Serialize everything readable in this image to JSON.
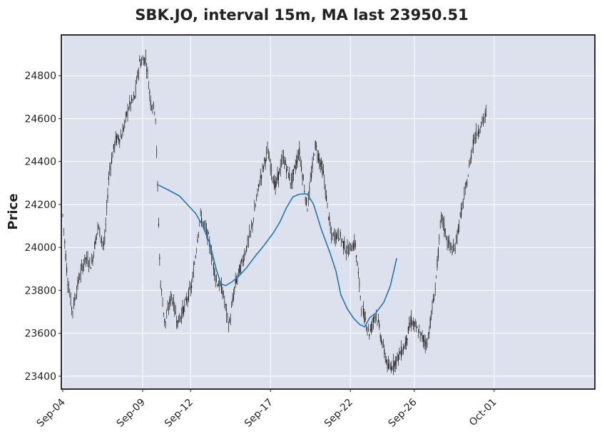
{
  "chart_data": {
    "type": "candlestick",
    "title": "SBK.JO, interval 15m, MA last 23950.51",
    "xlabel": "",
    "ylabel": "Price",
    "ylim": [
      23340,
      24990
    ],
    "y_ticks": [
      23400,
      23600,
      23800,
      24000,
      24200,
      24400,
      24600,
      24800
    ],
    "x_ticks": [
      {
        "label": "Sep-04",
        "day": 0
      },
      {
        "label": "Sep-09",
        "day": 5
      },
      {
        "label": "Sep-12",
        "day": 8
      },
      {
        "label": "Sep-17",
        "day": 13
      },
      {
        "label": "Sep-22",
        "day": 18
      },
      {
        "label": "Sep-26",
        "day": 22
      },
      {
        "label": "Oct-01",
        "day": 27
      }
    ],
    "grid": true,
    "background": "#dce1ed",
    "colors": {
      "candles": "#1a1a1a",
      "ma_line": "#1f77b4"
    },
    "price_path": [
      {
        "day": 0.0,
        "price": 24150
      },
      {
        "day": 0.3,
        "price": 23850
      },
      {
        "day": 0.6,
        "price": 23700
      },
      {
        "day": 1.0,
        "price": 23850
      },
      {
        "day": 1.4,
        "price": 23950
      },
      {
        "day": 1.8,
        "price": 23920
      },
      {
        "day": 2.2,
        "price": 24100
      },
      {
        "day": 2.6,
        "price": 24000
      },
      {
        "day": 2.9,
        "price": 24350
      },
      {
        "day": 3.3,
        "price": 24500
      },
      {
        "day": 3.7,
        "price": 24520
      },
      {
        "day": 4.1,
        "price": 24650
      },
      {
        "day": 4.5,
        "price": 24700
      },
      {
        "day": 4.8,
        "price": 24860
      },
      {
        "day": 5.2,
        "price": 24880
      },
      {
        "day": 5.5,
        "price": 24680
      },
      {
        "day": 5.8,
        "price": 24640
      },
      {
        "day": 6.1,
        "price": 23850
      },
      {
        "day": 6.4,
        "price": 23640
      },
      {
        "day": 6.8,
        "price": 23780
      },
      {
        "day": 7.2,
        "price": 23650
      },
      {
        "day": 7.6,
        "price": 23720
      },
      {
        "day": 8.1,
        "price": 23830
      },
      {
        "day": 8.6,
        "price": 24150
      },
      {
        "day": 9.1,
        "price": 24050
      },
      {
        "day": 9.6,
        "price": 23850
      },
      {
        "day": 10.0,
        "price": 23800
      },
      {
        "day": 10.4,
        "price": 23630
      },
      {
        "day": 10.8,
        "price": 23830
      },
      {
        "day": 11.3,
        "price": 23950
      },
      {
        "day": 11.8,
        "price": 24080
      },
      {
        "day": 12.3,
        "price": 24300
      },
      {
        "day": 12.8,
        "price": 24450
      },
      {
        "day": 13.3,
        "price": 24280
      },
      {
        "day": 13.8,
        "price": 24420
      },
      {
        "day": 14.3,
        "price": 24300
      },
      {
        "day": 14.8,
        "price": 24450
      },
      {
        "day": 15.3,
        "price": 24180
      },
      {
        "day": 15.8,
        "price": 24480
      },
      {
        "day": 16.3,
        "price": 24350
      },
      {
        "day": 16.8,
        "price": 24050
      },
      {
        "day": 17.3,
        "price": 24060
      },
      {
        "day": 17.8,
        "price": 23980
      },
      {
        "day": 18.3,
        "price": 24020
      },
      {
        "day": 18.7,
        "price": 23720
      },
      {
        "day": 19.2,
        "price": 23600
      },
      {
        "day": 19.6,
        "price": 23700
      },
      {
        "day": 20.0,
        "price": 23550
      },
      {
        "day": 20.4,
        "price": 23430
      },
      {
        "day": 20.9,
        "price": 23480
      },
      {
        "day": 21.4,
        "price": 23540
      },
      {
        "day": 21.8,
        "price": 23660
      },
      {
        "day": 22.3,
        "price": 23600
      },
      {
        "day": 22.8,
        "price": 23550
      },
      {
        "day": 23.3,
        "price": 23800
      },
      {
        "day": 23.7,
        "price": 24150
      },
      {
        "day": 24.1,
        "price": 24020
      },
      {
        "day": 24.5,
        "price": 23980
      },
      {
        "day": 24.9,
        "price": 24150
      },
      {
        "day": 25.3,
        "price": 24300
      },
      {
        "day": 25.7,
        "price": 24500
      },
      {
        "day": 26.1,
        "price": 24560
      },
      {
        "day": 26.5,
        "price": 24620
      }
    ],
    "moving_average": [
      {
        "day": 6.0,
        "value": 24290
      },
      {
        "day": 6.6,
        "value": 24268
      },
      {
        "day": 7.3,
        "value": 24240
      },
      {
        "day": 7.8,
        "value": 24200
      },
      {
        "day": 8.3,
        "value": 24160
      },
      {
        "day": 8.7,
        "value": 24110
      },
      {
        "day": 9.2,
        "value": 24020
      },
      {
        "day": 9.6,
        "value": 23900
      },
      {
        "day": 9.9,
        "value": 23830
      },
      {
        "day": 10.2,
        "value": 23822
      },
      {
        "day": 10.6,
        "value": 23840
      },
      {
        "day": 11.0,
        "value": 23865
      },
      {
        "day": 11.5,
        "value": 23905
      },
      {
        "day": 12.0,
        "value": 23955
      },
      {
        "day": 12.6,
        "value": 24010
      },
      {
        "day": 13.2,
        "value": 24070
      },
      {
        "day": 13.6,
        "value": 24120
      },
      {
        "day": 14.0,
        "value": 24185
      },
      {
        "day": 14.4,
        "value": 24235
      },
      {
        "day": 14.8,
        "value": 24248
      },
      {
        "day": 15.3,
        "value": 24250
      },
      {
        "day": 15.7,
        "value": 24200
      },
      {
        "day": 16.2,
        "value": 24080
      },
      {
        "day": 16.7,
        "value": 23980
      },
      {
        "day": 17.1,
        "value": 23890
      },
      {
        "day": 17.4,
        "value": 23780
      },
      {
        "day": 17.8,
        "value": 23715
      },
      {
        "day": 18.2,
        "value": 23670
      },
      {
        "day": 18.6,
        "value": 23640
      },
      {
        "day": 18.9,
        "value": 23630
      },
      {
        "day": 19.2,
        "value": 23672
      },
      {
        "day": 19.6,
        "value": 23695
      },
      {
        "day": 20.1,
        "value": 23745
      },
      {
        "day": 20.5,
        "value": 23820
      },
      {
        "day": 20.9,
        "value": 23950
      }
    ]
  }
}
